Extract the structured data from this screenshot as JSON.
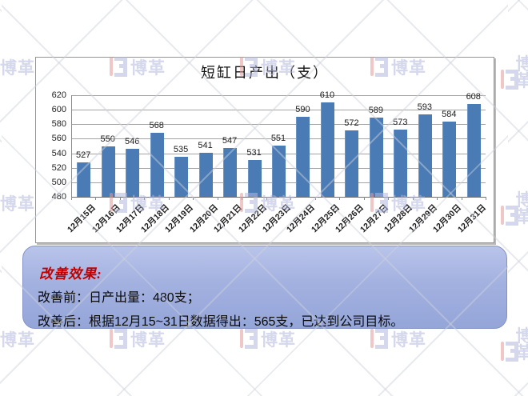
{
  "chart_data": {
    "type": "bar",
    "title": "短缸日产出（支）",
    "categories": [
      "12月15日",
      "12月16日",
      "12月17日",
      "12月18日",
      "12月19日",
      "12月20日",
      "12月21日",
      "12月22日",
      "12月23日",
      "12月24日",
      "12月25日",
      "12月26日",
      "12月27日",
      "12月28日",
      "12月29日",
      "12月30日",
      "12月31日"
    ],
    "values": [
      527,
      550,
      546,
      568,
      535,
      541,
      547,
      531,
      551,
      590,
      610,
      572,
      589,
      573,
      593,
      584,
      608
    ],
    "xlabel": "",
    "ylabel": "",
    "ylim": [
      480,
      620
    ],
    "yticks": [
      480,
      500,
      520,
      540,
      560,
      580,
      600,
      620
    ],
    "grid": true,
    "legend": "none",
    "bar_color": "#4a7bb5",
    "data_labels": true
  },
  "panel": {
    "heading": "改善效果:",
    "heading_color": "#c00000",
    "line_before": "改善前：日产出量：480支；",
    "line_after": "改善后：根据12月15~31日数据得出：565支，已达到公司目标。"
  },
  "watermark": {
    "text": "博革",
    "text_color": "#b4b8de",
    "accent_color": "#e59a9a",
    "shape_color": "#b4b8de"
  }
}
